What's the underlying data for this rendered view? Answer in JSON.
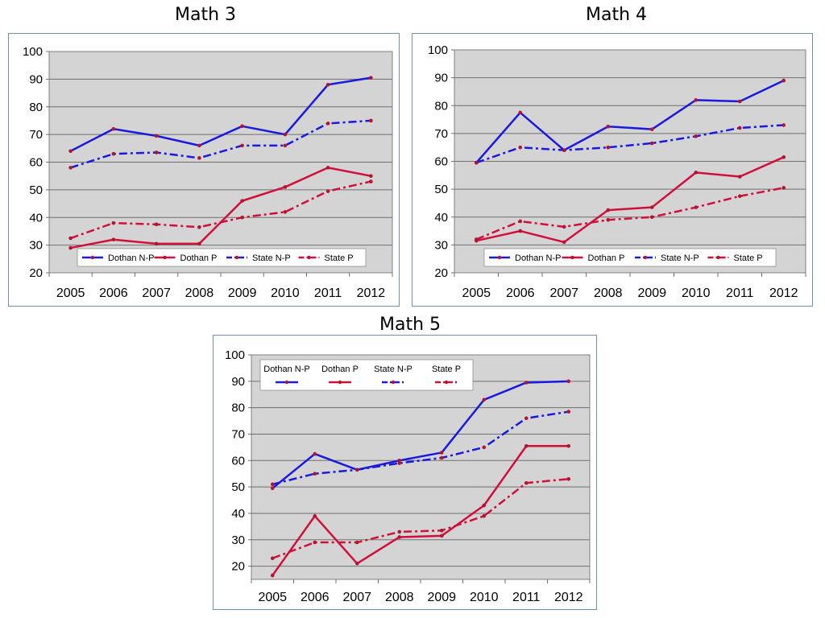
{
  "colors": {
    "dothan": "#1a1adf",
    "dothan_p": "#d0103a",
    "state": "#1a1adf",
    "state_p": "#d0103a",
    "marker": "#b3152f",
    "plot_bg": "#d4d4d4"
  },
  "chart_data": [
    {
      "type": "line",
      "title": "Math 3",
      "x": [
        "2005",
        "2006",
        "2007",
        "2008",
        "2009",
        "2010",
        "2011",
        "2012"
      ],
      "ylim": [
        20,
        100
      ],
      "yticks": [
        "20",
        "30",
        "40",
        "50",
        "60",
        "70",
        "80",
        "90",
        "100"
      ],
      "grid": true,
      "legend": "bottom-inside",
      "series": [
        {
          "name": "Dothan N-P",
          "style": "solid",
          "color": "#1a1adf",
          "values": [
            64,
            72,
            69.5,
            66,
            73,
            70,
            88,
            90.5
          ]
        },
        {
          "name": "Dothan P",
          "style": "solid",
          "color": "#d0103a",
          "values": [
            29,
            32,
            30.5,
            30.5,
            46,
            51,
            58,
            55
          ]
        },
        {
          "name": "State N-P",
          "style": "dashdot",
          "color": "#1a1adf",
          "values": [
            58,
            63,
            63.5,
            61.5,
            66,
            66,
            74,
            75
          ]
        },
        {
          "name": "State P",
          "style": "dashdot",
          "color": "#d0103a",
          "values": [
            32.5,
            38,
            37.5,
            36.5,
            40,
            42,
            49.5,
            53
          ]
        }
      ]
    },
    {
      "type": "line",
      "title": "Math 4",
      "x": [
        "2005",
        "2006",
        "2007",
        "2008",
        "2009",
        "2010",
        "2011",
        "2012"
      ],
      "ylim": [
        20,
        100
      ],
      "yticks": [
        "20",
        "30",
        "40",
        "50",
        "60",
        "70",
        "80",
        "90",
        "100"
      ],
      "grid": true,
      "legend": "bottom-inside",
      "series": [
        {
          "name": "Dothan N-P",
          "style": "solid",
          "color": "#1a1adf",
          "values": [
            59.5,
            77.5,
            64,
            72.5,
            71.5,
            82,
            81.5,
            89
          ]
        },
        {
          "name": "Dothan P",
          "style": "solid",
          "color": "#d0103a",
          "values": [
            31.5,
            35,
            31,
            42.5,
            43.5,
            56,
            54.5,
            61.5
          ]
        },
        {
          "name": "State N-P",
          "style": "dashdot",
          "color": "#1a1adf",
          "values": [
            59.5,
            65,
            64,
            65,
            66.5,
            69,
            72,
            73
          ]
        },
        {
          "name": "State P",
          "style": "dashdot",
          "color": "#d0103a",
          "values": [
            32,
            38.5,
            36.5,
            39,
            40,
            43.5,
            47.5,
            50.5
          ]
        }
      ]
    },
    {
      "type": "line",
      "title": "Math 5",
      "x": [
        "2005",
        "2006",
        "2007",
        "2008",
        "2009",
        "2010",
        "2011",
        "2012"
      ],
      "ylim": [
        15,
        100
      ],
      "yticks": [
        "20",
        "30",
        "40",
        "50",
        "60",
        "70",
        "80",
        "90",
        "100"
      ],
      "grid": true,
      "legend": "top-inside",
      "series": [
        {
          "name": "Dothan N-P",
          "style": "solid",
          "color": "#1a1adf",
          "values": [
            49.5,
            62.5,
            56.5,
            60,
            63,
            83,
            89.5,
            90
          ]
        },
        {
          "name": "Dothan P",
          "style": "solid",
          "color": "#d0103a",
          "values": [
            16.5,
            39,
            21,
            31,
            31.5,
            43,
            65.5,
            65.5
          ]
        },
        {
          "name": "State N-P",
          "style": "dashdot",
          "color": "#1a1adf",
          "values": [
            51,
            55,
            56.5,
            59,
            61,
            65,
            76,
            78.5
          ]
        },
        {
          "name": "State P",
          "style": "dashdot",
          "color": "#d0103a",
          "values": [
            23,
            29,
            29,
            33,
            33.5,
            39,
            51.5,
            53
          ]
        }
      ]
    }
  ]
}
